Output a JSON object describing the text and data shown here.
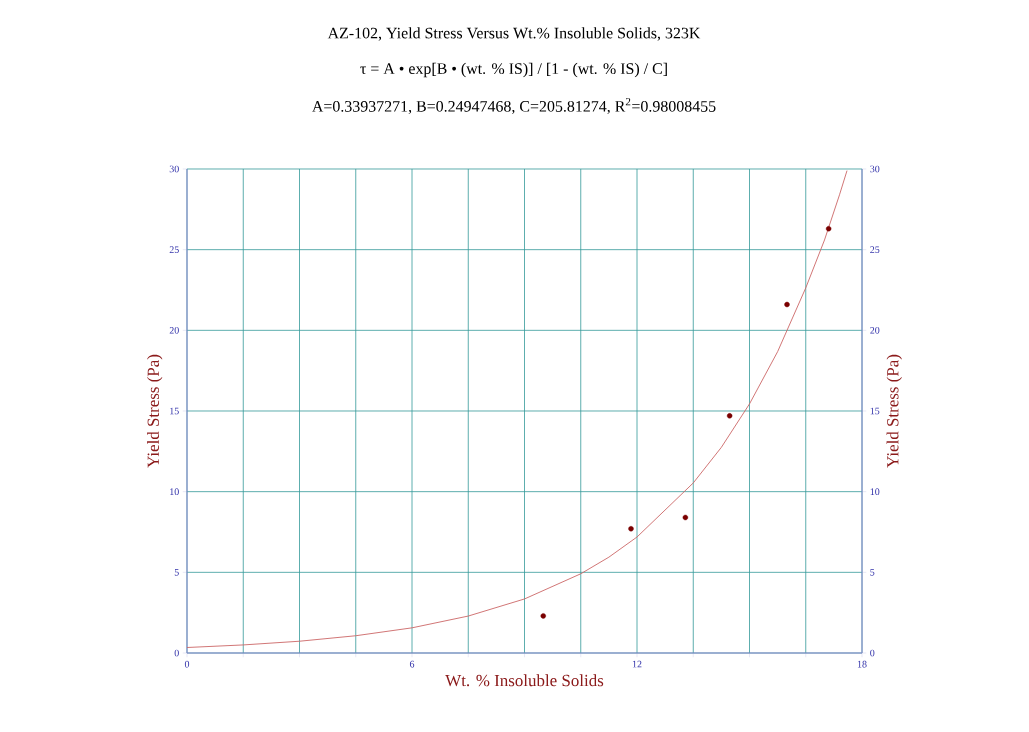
{
  "chart_data": {
    "type": "scatter",
    "title": "AZ-102, Yield Stress Versus Wt.% Insoluble Solids, 323K",
    "subtitle": "τ = A • exp[B • (wt. % IS)] / [1 - (wt. % IS) / C]",
    "annotations": [
      "A=0.33937271, B=0.24947468, C=205.81274, R$^{2}$=0.98008455"
    ],
    "xlabel": "Wt. % Insoluble Solids",
    "ylabel": "Yield Stress (Pa)",
    "y2label": "Yield Stress (Pa)",
    "series": [
      {
        "marker": "circle",
        "color": "#7a0000",
        "x": [
          9.5,
          11.84,
          13.29,
          14.47,
          16.0,
          17.11
        ],
        "values": [
          2.3,
          7.7,
          8.4,
          14.7,
          21.6,
          26.3
        ]
      },
      {
        "type": "line",
        "marker": "none",
        "color": "#cc6666",
        "x": [
          0,
          1.5,
          3,
          4.5,
          6,
          7.5,
          9,
          10.5,
          11.25,
          12,
          13.5,
          14.25,
          15,
          15.75,
          16.5,
          17,
          17.4,
          17.6
        ],
        "values": [
          0.34,
          0.5,
          0.73,
          1.07,
          1.56,
          2.29,
          3.35,
          4.91,
          5.94,
          7.19,
          10.54,
          12.75,
          15.44,
          18.68,
          22.63,
          25.6,
          28.4,
          29.9
        ]
      }
    ],
    "xlim": [
      0,
      18
    ],
    "xticks": [
      0,
      {
        "value": 1.5,
        "label": null
      },
      {
        "value": 3,
        "label": null
      },
      {
        "value": 4.5,
        "label": null
      },
      6,
      {
        "value": 7.5,
        "label": null
      },
      {
        "value": 9,
        "label": null
      },
      {
        "value": 10.5,
        "label": null
      },
      12,
      {
        "value": 13.5,
        "label": null
      },
      {
        "value": 15,
        "label": null
      },
      {
        "value": 16.5,
        "label": null
      },
      18
    ],
    "ylim": [
      0,
      30
    ],
    "yticks": [
      0,
      5,
      10,
      15,
      20,
      25,
      30
    ],
    "y2lim": [
      0,
      30
    ],
    "y2ticks": [
      0,
      5,
      10,
      15,
      20,
      25,
      30
    ],
    "grid": true
  }
}
